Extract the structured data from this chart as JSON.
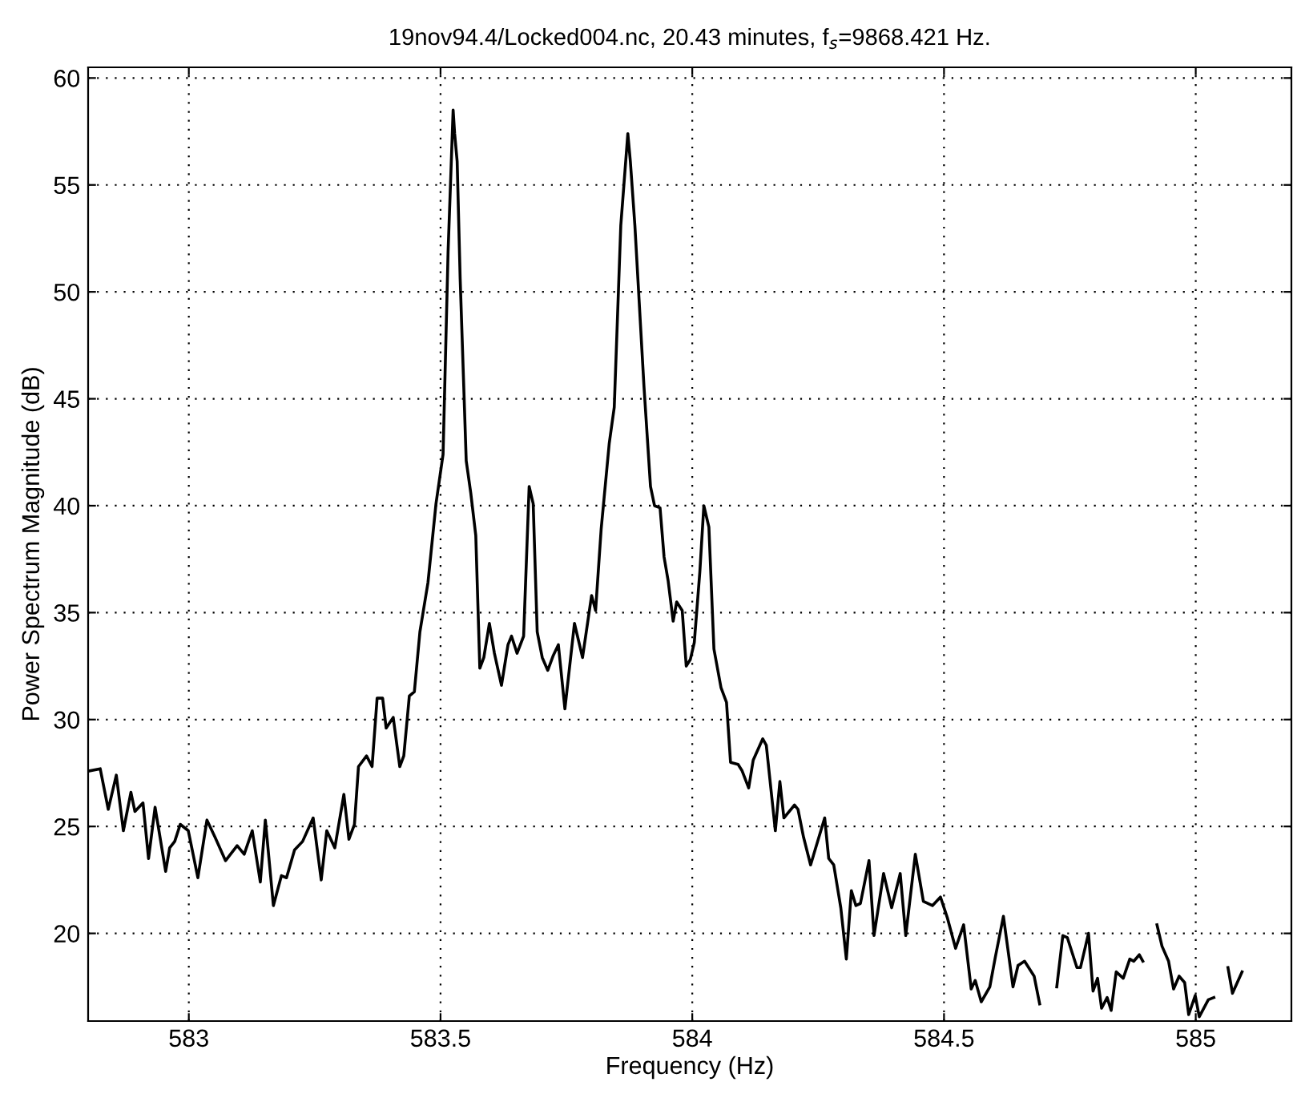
{
  "chart_data": {
    "type": "line",
    "title": "19nov94.4/Locked004.nc, 20.43 minutes, f$_{s}$=9868.421 Hz.",
    "xlabel": "Frequency (Hz)",
    "ylabel": "Power Spectrum Magnitude (dB)",
    "xlim": [
      582.8,
      585.19
    ],
    "ylim": [
      15.9,
      60.5
    ],
    "xticks": [
      583,
      583.5,
      584,
      584.5,
      585
    ],
    "yticks": [
      20,
      25,
      30,
      35,
      40,
      45,
      50,
      55,
      60
    ],
    "grid": true,
    "line_style": "solid",
    "marker": "none",
    "series": [
      {
        "color": "#000000",
        "x": [
          582.803,
          582.824,
          582.84,
          582.856,
          582.87,
          582.885,
          582.893,
          582.909,
          582.92,
          582.933,
          582.954,
          582.962,
          582.972,
          582.983,
          582.999,
          583.018,
          583.036,
          583.052,
          583.073,
          583.096,
          583.11,
          583.126,
          583.142,
          583.152,
          583.168,
          583.184,
          583.194,
          583.21,
          583.226,
          583.247,
          583.263,
          583.274,
          583.29,
          583.308,
          583.318,
          583.329,
          583.337,
          583.353,
          583.364,
          583.374,
          583.385,
          583.392,
          583.406,
          583.419,
          583.427,
          583.438,
          583.448,
          583.459,
          583.475,
          583.491,
          583.505,
          583.515,
          583.525,
          583.528,
          583.533,
          583.539,
          583.551,
          583.56,
          583.57,
          583.578,
          583.586,
          583.597,
          583.607,
          583.621,
          583.634,
          583.641,
          583.652,
          583.665,
          583.676,
          583.684,
          583.692,
          583.702,
          583.713,
          583.724,
          583.734,
          583.747,
          583.766,
          583.782,
          583.8,
          583.808,
          583.819,
          583.835,
          583.845,
          583.858,
          583.872,
          583.877,
          583.886,
          583.904,
          583.917,
          583.925,
          583.936,
          583.944,
          583.952,
          583.962,
          583.969,
          583.98,
          583.988,
          583.996,
          584.004,
          584.015,
          584.023,
          584.033,
          584.043,
          584.057,
          584.068,
          584.076,
          584.091,
          584.099,
          584.112,
          584.121,
          584.14,
          584.147,
          584.165,
          584.174,
          584.182,
          584.203,
          584.21,
          584.221,
          584.235,
          584.263,
          584.271,
          584.281,
          584.295,
          584.306,
          584.316,
          584.325,
          584.334,
          584.351,
          584.361,
          584.38,
          584.396,
          584.413,
          584.424,
          584.443,
          584.459,
          584.477,
          584.493,
          584.507,
          584.523,
          584.539,
          584.554,
          584.562,
          584.574,
          584.591,
          584.602,
          584.618,
          584.637,
          584.647,
          584.66,
          584.679,
          584.69,
          584.697,
          584.711,
          584.724,
          584.736,
          584.745,
          584.764,
          584.771,
          584.787,
          584.796,
          584.805,
          584.813,
          584.824,
          584.832,
          584.842,
          584.856,
          584.869,
          584.877,
          584.888,
          584.895,
          584.903,
          584.923,
          584.933,
          584.946,
          584.956,
          584.967,
          584.978,
          584.986,
          584.999,
          585.007,
          585.025,
          585.036,
          585.043,
          585.052,
          585.064,
          585.073,
          585.092
        ],
        "values": [
          27.6,
          27.7,
          25.8,
          27.4,
          24.8,
          26.6,
          25.7,
          26.1,
          23.5,
          25.9,
          22.9,
          24.0,
          24.3,
          25.1,
          24.8,
          22.6,
          25.3,
          24.5,
          23.4,
          24.1,
          23.7,
          24.8,
          22.4,
          25.3,
          21.3,
          22.7,
          22.6,
          23.9,
          24.3,
          25.4,
          22.5,
          24.8,
          24.0,
          26.5,
          24.4,
          25.1,
          27.8,
          28.3,
          27.8,
          31.0,
          31.0,
          29.6,
          30.1,
          27.8,
          28.3,
          31.1,
          31.3,
          34.1,
          36.4,
          40.1,
          42.4,
          51.9,
          58.5,
          57.4,
          56.1,
          50.6,
          42.1,
          40.6,
          38.6,
          32.4,
          32.9,
          34.5,
          33.1,
          31.6,
          33.5,
          33.9,
          33.1,
          33.9,
          40.9,
          40.1,
          34.1,
          32.9,
          32.3,
          33.0,
          33.5,
          30.5,
          34.5,
          32.9,
          35.8,
          35.1,
          38.9,
          42.9,
          44.6,
          53.1,
          57.4,
          56.1,
          53.1,
          45.6,
          40.9,
          40.0,
          39.9,
          37.6,
          36.5,
          34.6,
          35.5,
          35.1,
          32.5,
          32.8,
          33.6,
          36.9,
          40.0,
          39.0,
          33.3,
          31.5,
          30.8,
          28.0,
          27.9,
          27.6,
          26.8,
          28.1,
          29.1,
          28.8,
          24.8,
          27.1,
          25.4,
          26.0,
          25.8,
          24.5,
          23.2,
          25.4,
          23.5,
          23.2,
          21.2,
          18.8,
          22.0,
          21.3,
          21.4,
          23.4,
          19.9,
          22.8,
          21.2,
          22.8,
          19.9,
          23.7,
          21.5,
          21.3,
          21.7,
          20.7,
          19.3,
          20.4,
          17.4,
          17.8,
          16.8,
          17.5,
          18.9,
          20.8,
          17.5,
          18.5,
          18.7,
          18.0,
          16.7,
          null,
          null,
          17.5,
          19.9,
          19.8,
          18.4,
          18.4,
          20.0,
          17.3,
          17.9,
          16.5,
          17.0,
          16.4,
          18.2,
          17.9,
          18.8,
          18.7,
          19.0,
          18.7,
          null,
          20.4,
          19.4,
          18.7,
          17.4,
          18.0,
          17.7,
          16.2,
          17.1,
          16.1,
          16.9,
          17.0,
          null,
          null,
          18.4,
          17.2,
          18.2
        ]
      }
    ]
  }
}
